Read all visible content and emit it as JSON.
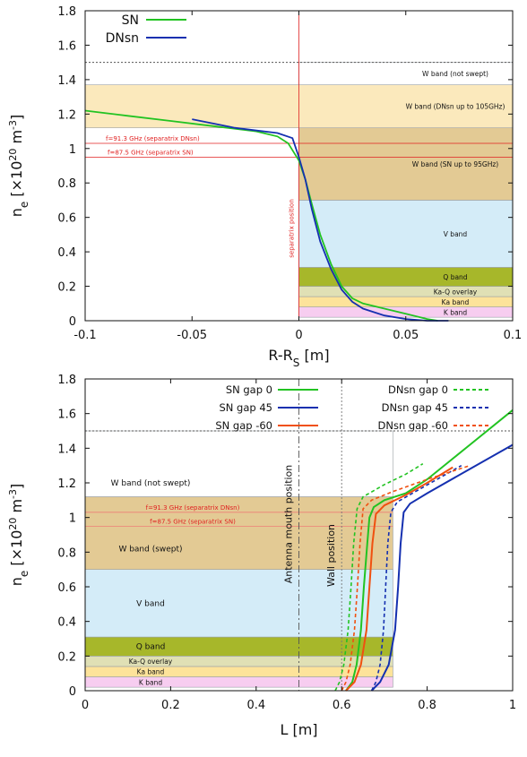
{
  "chart_data": [
    {
      "type": "line",
      "xlabel": "R-R",
      "xlabel_sub": "S",
      "xlabel_unit": " [m]",
      "ylabel": "n",
      "ylabel_sub": "e",
      "ylabel_unit": " [×10",
      "ylabel_exp": "20",
      "ylabel_unit2": " m",
      "ylabel_exp2": "-3",
      "ylabel_close": "]",
      "xlim": [
        -0.1,
        0.1
      ],
      "ylim": [
        0,
        1.8
      ],
      "xticks": [
        "-0.1",
        "-0.05",
        "0",
        "0.05",
        "0.1"
      ],
      "yticks": [
        "0",
        "0.2",
        "0.4",
        "0.6",
        "0.8",
        "1",
        "1.2",
        "1.4",
        "1.6",
        "1.8"
      ],
      "legend_position": "top-left",
      "series": [
        {
          "name": "SN",
          "color": "#22c322",
          "x": [
            -0.1,
            -0.08,
            -0.06,
            -0.04,
            -0.02,
            -0.01,
            -0.005,
            0,
            0.003,
            0.006,
            0.01,
            0.015,
            0.02,
            0.025,
            0.03,
            0.04,
            0.05,
            0.06,
            0.065
          ],
          "y": [
            1.22,
            1.19,
            1.16,
            1.13,
            1.1,
            1.07,
            1.03,
            0.93,
            0.82,
            0.68,
            0.5,
            0.33,
            0.2,
            0.13,
            0.1,
            0.07,
            0.04,
            0.01,
            0.0
          ]
        },
        {
          "name": "DNsn",
          "color": "#1530b0",
          "x": [
            -0.05,
            -0.03,
            -0.01,
            -0.003,
            0,
            0.003,
            0.006,
            0.01,
            0.015,
            0.02,
            0.025,
            0.03,
            0.04,
            0.05,
            0.06,
            0.07
          ],
          "y": [
            1.17,
            1.12,
            1.09,
            1.06,
            0.95,
            0.82,
            0.65,
            0.46,
            0.3,
            0.18,
            0.11,
            0.07,
            0.03,
            0.01,
            0.0,
            0.0
          ]
        }
      ],
      "bands": [
        {
          "label": "K band",
          "y0": 0.02,
          "y1": 0.08,
          "color": "#f7cdf0"
        },
        {
          "label": "Ka band",
          "y0": 0.08,
          "y1": 0.14,
          "color": "#fde39a"
        },
        {
          "label": "Ka-Q overlay",
          "y0": 0.14,
          "y1": 0.2,
          "color": "#e0e0b5"
        },
        {
          "label": "Q band",
          "y0": 0.2,
          "y1": 0.31,
          "color": "#a7b72a"
        },
        {
          "label": "V band",
          "y0": 0.31,
          "y1": 0.7,
          "color": "#d4ecf8"
        },
        {
          "label": "W band (SN up to 95GHz)",
          "y0": 0.7,
          "y1": 1.12,
          "color": "#e3ca94"
        },
        {
          "label": "W band (DNsn up to 105GHz)",
          "y0": 1.12,
          "y1": 1.37,
          "color": "#fbe9bc"
        },
        {
          "label": "W band (not swept)",
          "y0": 1.37,
          "y1": 1.5,
          "color": "#ffffff"
        }
      ],
      "red_lines": [
        {
          "label": "f=91.3 GHz (separatrix DNsn)",
          "y": 1.03
        },
        {
          "label": "f=87.5 GHz (separatrix SN)",
          "y": 0.95
        }
      ],
      "dotted_y": 1.5,
      "separatrix_label": "separatrix position"
    },
    {
      "type": "line",
      "xlabel": "L [m]",
      "ylabel": "n",
      "ylabel_sub": "e",
      "ylabel_unit": " [×10",
      "ylabel_exp": "20",
      "ylabel_unit2": " m",
      "ylabel_exp2": "-3",
      "ylabel_close": "]",
      "xlim": [
        0,
        1
      ],
      "ylim": [
        0,
        1.8
      ],
      "xticks": [
        "0",
        "0.2",
        "0.4",
        "0.6",
        "0.8",
        "1"
      ],
      "yticks": [
        "0",
        "0.2",
        "0.4",
        "0.6",
        "0.8",
        "1",
        "1.2",
        "1.4",
        "1.6",
        "1.8"
      ],
      "legend_position": "top",
      "series": [
        {
          "name": "SN gap 0",
          "color": "#22c322",
          "dash": false,
          "x": [
            0.61,
            0.625,
            0.635,
            0.645,
            0.652,
            0.66,
            0.665,
            0.675,
            0.7,
            0.75,
            0.8,
            0.9,
            1.0
          ],
          "y": [
            0.0,
            0.05,
            0.15,
            0.35,
            0.6,
            0.85,
            1.0,
            1.06,
            1.1,
            1.14,
            1.22,
            1.42,
            1.62
          ]
        },
        {
          "name": "SN gap 45",
          "color": "#1530b0",
          "dash": false,
          "x": [
            0.67,
            0.69,
            0.71,
            0.725,
            0.732,
            0.738,
            0.745,
            0.76,
            0.8,
            0.9,
            1.0
          ],
          "y": [
            0.0,
            0.05,
            0.15,
            0.35,
            0.6,
            0.85,
            1.03,
            1.08,
            1.14,
            1.28,
            1.42
          ]
        },
        {
          "name": "SN gap -60",
          "color": "#f05010",
          "dash": false,
          "x": [
            0.61,
            0.63,
            0.645,
            0.658,
            0.665,
            0.672,
            0.68,
            0.7,
            0.75,
            0.8,
            0.86
          ],
          "y": [
            0.0,
            0.05,
            0.15,
            0.35,
            0.6,
            0.85,
            1.02,
            1.07,
            1.13,
            1.2,
            1.29
          ]
        },
        {
          "name": "DNsn gap 0",
          "color": "#22c322",
          "dash": true,
          "x": [
            0.585,
            0.595,
            0.605,
            0.615,
            0.622,
            0.628,
            0.636,
            0.65,
            0.7,
            0.75,
            0.79
          ],
          "y": [
            0.0,
            0.05,
            0.15,
            0.35,
            0.6,
            0.85,
            1.05,
            1.12,
            1.19,
            1.25,
            1.31
          ]
        },
        {
          "name": "DNsn gap 45",
          "color": "#1530b0",
          "dash": true,
          "x": [
            0.67,
            0.68,
            0.69,
            0.698,
            0.703,
            0.708,
            0.715,
            0.73,
            0.78,
            0.83,
            0.88
          ],
          "y": [
            0.0,
            0.05,
            0.15,
            0.35,
            0.6,
            0.85,
            1.03,
            1.09,
            1.16,
            1.23,
            1.3
          ]
        },
        {
          "name": "DNsn gap -60",
          "color": "#f05010",
          "dash": true,
          "x": [
            0.6,
            0.61,
            0.62,
            0.63,
            0.637,
            0.643,
            0.65,
            0.67,
            0.72,
            0.8,
            0.9
          ],
          "y": [
            0.0,
            0.05,
            0.15,
            0.35,
            0.6,
            0.85,
            1.05,
            1.1,
            1.15,
            1.22,
            1.3
          ]
        }
      ],
      "bands": [
        {
          "label": "K band",
          "y0": 0.02,
          "y1": 0.08,
          "color": "#f7cdf0"
        },
        {
          "label": "Ka band",
          "y0": 0.08,
          "y1": 0.14,
          "color": "#fde39a"
        },
        {
          "label": "Ka-Q overlay",
          "y0": 0.14,
          "y1": 0.2,
          "color": "#e0e0b5"
        },
        {
          "label": "Q band",
          "y0": 0.2,
          "y1": 0.31,
          "color": "#a7b72a"
        },
        {
          "label": "V band",
          "y0": 0.31,
          "y1": 0.7,
          "color": "#d4ecf8"
        },
        {
          "label": "W band (swept)",
          "y0": 0.7,
          "y1": 1.12,
          "color": "#e3ca94"
        },
        {
          "label": "W band (not swept)",
          "y0": 1.12,
          "y1": 1.5,
          "color": "#ffffff"
        }
      ],
      "band_xmax": 0.72,
      "red_lines": [
        {
          "label": "f=91.3 GHz (separatrix DNsn)",
          "y": 1.03
        },
        {
          "label": "f=87.5 GHz (separatrix SN)",
          "y": 0.95
        }
      ],
      "dotted_y": 1.5,
      "antenna": {
        "label": "Antenna mouth position",
        "x": 0.5
      },
      "wall": {
        "label": "Wall position",
        "x": 0.6
      }
    }
  ]
}
